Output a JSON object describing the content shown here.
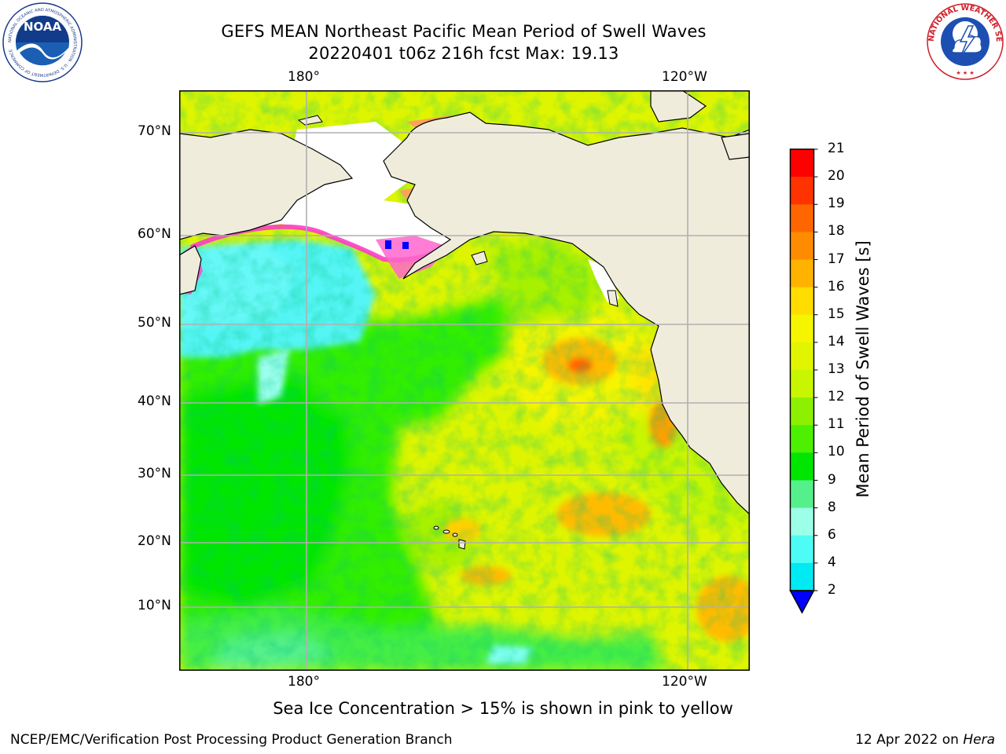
{
  "header": {
    "title_line1": "GEFS MEAN Northeast Pacific Mean Period of Swell Waves",
    "title_line2": "20220401 t06z 216h fcst   Max: 19.13"
  },
  "logos": {
    "noaa_text": "NOAA",
    "noaa_ring_text": "NATIONAL OCEANIC AND ATMOSPHERIC ADMINISTRATION · U.S. DEPARTMENT OF COMMERCE",
    "nws_ring_text": "NATIONAL WEATHER SERVICE"
  },
  "map": {
    "lon_labels_top": [
      "180°",
      "120°W"
    ],
    "lon_labels_bottom": [
      "180°",
      "120°W"
    ],
    "lat_labels": [
      "70°N",
      "60°N",
      "50°N",
      "40°N",
      "30°N",
      "20°N",
      "10°N"
    ],
    "colors": {
      "land": "#efecdc",
      "ice": "#ffffff",
      "grid": "#b0b0b0",
      "coast": "#000000"
    }
  },
  "colorbar": {
    "label": "Mean Period of Swell Waves [s]",
    "ticks": [
      "21",
      "20",
      "19",
      "18",
      "17",
      "16",
      "15",
      "14",
      "13",
      "12",
      "11",
      "10",
      "9",
      "8",
      "6",
      "4",
      "2"
    ],
    "colors": [
      "#ff0000",
      "#ff3300",
      "#ff6600",
      "#ff8c00",
      "#ffb300",
      "#ffdd00",
      "#f5f500",
      "#e1f500",
      "#c8f500",
      "#8cf000",
      "#4cf000",
      "#00e600",
      "#55f08c",
      "#9cffe8",
      "#4dfcf4",
      "#00eaf4",
      "#0aa0f0",
      "#0064ff"
    ],
    "extend_color": "#0000ff"
  },
  "footer": {
    "note": "Sea Ice Concentration > 15% is shown in pink to yellow",
    "credit_left": "NCEP/EMC/Verification Post Processing Product Generation Branch",
    "credit_date": "12 Apr 2022 on ",
    "credit_host": "Hera"
  }
}
